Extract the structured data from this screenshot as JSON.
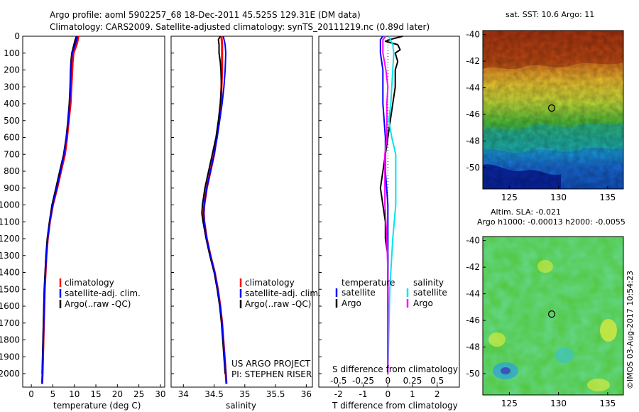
{
  "header": {
    "title_line1": "Argo profile: aoml 5902257_68 18-Dec-2011 45.525S 129.31E (DM data)",
    "title_line2": "Climatology: CARS2009. Satellite-adjusted climatology: synTS_20111219.nc (0.89d later)"
  },
  "colors": {
    "climatology": "#ff0000",
    "satellite": "#0000ff",
    "argo": "#000000",
    "salinity_satellite": "#00e5ee",
    "salinity_argo": "#ff00ff"
  },
  "chart_data": [
    {
      "type": "line",
      "id": "temperature",
      "xlabel": "temperature (deg C)",
      "ylabel": "",
      "xlim": [
        -2,
        31
      ],
      "ylim": [
        2080,
        0
      ],
      "xticks": [
        0,
        5,
        10,
        15,
        20,
        25,
        30
      ],
      "yticks": [
        0,
        100,
        200,
        300,
        400,
        500,
        600,
        700,
        800,
        900,
        1000,
        1100,
        1200,
        1300,
        1400,
        1500,
        1600,
        1700,
        1800,
        1900,
        2000
      ],
      "legend": [
        "climatology",
        "satellite-adj. clim.",
        "Argo(..raw -QC)"
      ],
      "series": [
        {
          "name": "climatology",
          "depth": [
            0,
            20,
            50,
            100,
            150,
            200,
            300,
            400,
            500,
            600,
            700,
            800,
            900,
            1000,
            1100,
            1200,
            1300,
            1400,
            1500,
            1600,
            1700,
            1800,
            1900,
            2000,
            2060
          ],
          "values": [
            10.9,
            10.8,
            10.5,
            9.8,
            9.6,
            9.5,
            9.3,
            9.1,
            8.7,
            8.3,
            7.8,
            6.9,
            6.0,
            5.0,
            4.3,
            3.8,
            3.5,
            3.3,
            3.1,
            3.0,
            2.9,
            2.8,
            2.7,
            2.6,
            2.5
          ]
        },
        {
          "name": "satellite-adj. clim.",
          "depth": [
            0,
            20,
            50,
            100,
            150,
            200,
            300,
            400,
            500,
            600,
            700,
            800,
            900,
            1000,
            1100,
            1200,
            1300,
            1400,
            1500,
            1600,
            1700,
            1800,
            1900,
            2000,
            2060
          ],
          "values": [
            10.7,
            10.5,
            10.2,
            9.5,
            9.3,
            9.2,
            9.1,
            8.9,
            8.6,
            8.2,
            7.6,
            6.8,
            5.9,
            5.0,
            4.3,
            3.8,
            3.5,
            3.3,
            3.1,
            3.0,
            2.9,
            2.8,
            2.7,
            2.6,
            2.5
          ]
        },
        {
          "name": "Argo(..raw -QC)",
          "depth": [
            0,
            20,
            50,
            100,
            150,
            200,
            300,
            400,
            500,
            600,
            700,
            800,
            900,
            1000,
            1100,
            1200,
            1300,
            1400,
            1500,
            1600,
            1700,
            1800,
            1900,
            2000
          ],
          "values": [
            10.5,
            10.2,
            9.9,
            9.4,
            9.2,
            9.1,
            9.0,
            8.8,
            8.5,
            8.1,
            7.5,
            6.6,
            5.7,
            4.8,
            4.2,
            3.7,
            3.4,
            3.2,
            3.0,
            2.9,
            2.8,
            2.7,
            2.6,
            2.5
          ]
        }
      ]
    },
    {
      "type": "line",
      "id": "salinity",
      "xlabel": "salinity",
      "xlim": [
        33.8,
        36.1
      ],
      "ylim": [
        2080,
        0
      ],
      "xticks": [
        34,
        34.5,
        35,
        35.5,
        36
      ],
      "legend": [
        "climatology",
        "satellite-adj. clim.",
        "Argo(..raw -QC)"
      ],
      "annotation_line1": "US ARGO PROJECT",
      "annotation_line2": "PI: STEPHEN RISER",
      "series": [
        {
          "name": "climatology",
          "depth": [
            0,
            50,
            100,
            200,
            300,
            400,
            500,
            600,
            700,
            800,
            900,
            1000,
            1050,
            1100,
            1200,
            1300,
            1400,
            1500,
            1600,
            1700,
            1800,
            1900,
            2000,
            2060
          ],
          "values": [
            34.62,
            34.63,
            34.63,
            34.63,
            34.62,
            34.61,
            34.58,
            34.54,
            34.5,
            34.44,
            34.38,
            34.34,
            34.33,
            34.34,
            34.38,
            34.44,
            34.51,
            34.56,
            34.6,
            34.63,
            34.65,
            34.67,
            34.69,
            34.7
          ]
        },
        {
          "name": "satellite-adj. clim.",
          "depth": [
            0,
            50,
            100,
            200,
            300,
            400,
            500,
            600,
            700,
            800,
            900,
            1000,
            1050,
            1100,
            1200,
            1300,
            1400,
            1500,
            1600,
            1700,
            1800,
            1900,
            2000,
            2060
          ],
          "values": [
            34.65,
            34.68,
            34.69,
            34.68,
            34.66,
            34.63,
            34.59,
            34.55,
            34.5,
            34.44,
            34.38,
            34.34,
            34.33,
            34.34,
            34.38,
            34.44,
            34.51,
            34.56,
            34.6,
            34.63,
            34.65,
            34.67,
            34.69,
            34.7
          ]
        },
        {
          "name": "Argo(..raw -QC)",
          "depth": [
            0,
            20,
            50,
            100,
            150,
            200,
            300,
            400,
            500,
            600,
            700,
            800,
            900,
            1000,
            1050,
            1100,
            1200,
            1300,
            1400,
            1500,
            1600,
            1700,
            1800,
            1900,
            2000
          ],
          "values": [
            34.6,
            34.57,
            34.58,
            34.58,
            34.6,
            34.61,
            34.62,
            34.6,
            34.57,
            34.53,
            34.47,
            34.41,
            34.35,
            34.31,
            34.3,
            34.32,
            34.37,
            34.43,
            34.5,
            34.55,
            34.59,
            34.62,
            34.64,
            34.66,
            34.68
          ]
        }
      ]
    },
    {
      "type": "line",
      "id": "differences",
      "xlabel": "T difference from climatology",
      "xlabel2": "S difference from climatology",
      "xlim": [
        -2.8,
        2.9
      ],
      "xlim2": [
        -0.7,
        0.725
      ],
      "ylim": [
        2080,
        0
      ],
      "xticks": [
        -2,
        -1,
        0,
        1,
        2
      ],
      "xticks2": [
        -0.5,
        -0.25,
        0,
        0.25,
        0.5
      ],
      "legend_temperature_title": "temperature",
      "legend_salinity_title": "salinity",
      "legend_temperature": [
        "satellite",
        "Argo"
      ],
      "legend_salinity": [
        "satellite",
        "Argo"
      ],
      "series": [
        {
          "name": "temperature satellite",
          "depth": [
            0,
            20,
            50,
            100,
            200,
            400,
            600,
            800,
            1000,
            1200,
            1500,
            2000
          ],
          "values": [
            -0.2,
            -0.3,
            -0.3,
            -0.3,
            -0.2,
            -0.2,
            -0.1,
            -0.1,
            0,
            0,
            0,
            0
          ]
        },
        {
          "name": "temperature Argo",
          "depth": [
            0,
            15,
            30,
            50,
            80,
            100,
            150,
            200,
            300,
            400,
            500,
            600,
            700,
            800,
            900,
            1000,
            1100,
            1200,
            1300,
            1400,
            1600,
            2000
          ],
          "values": [
            0.6,
            0.2,
            -0.1,
            0.4,
            0.5,
            0.3,
            0.4,
            0.3,
            0.3,
            0.2,
            0.1,
            0.0,
            -0.1,
            -0.2,
            -0.3,
            -0.2,
            -0.1,
            -0.1,
            0,
            0,
            0,
            0
          ]
        },
        {
          "name": "salinity satellite",
          "depth": [
            0,
            50,
            100,
            200,
            300,
            400,
            500,
            600,
            700,
            800,
            1000,
            1200,
            1500,
            2000
          ],
          "values": [
            0.01,
            0.05,
            0.06,
            0.05,
            0.04,
            0.03,
            0.01,
            0.04,
            0.08,
            0.08,
            0.08,
            0.05,
            0.02,
            0
          ]
        },
        {
          "name": "salinity Argo",
          "depth": [
            0,
            20,
            50,
            100,
            200,
            300,
            400,
            500,
            600,
            700,
            800,
            900,
            1000,
            1100,
            1200,
            1400,
            1600,
            2000
          ],
          "values": [
            -0.02,
            -0.05,
            -0.05,
            -0.05,
            -0.02,
            0.0,
            -0.01,
            -0.01,
            -0.01,
            -0.03,
            -0.03,
            -0.03,
            -0.03,
            -0.02,
            -0.01,
            0,
            0,
            0
          ]
        }
      ]
    },
    {
      "type": "heatmap",
      "id": "sst_map",
      "title": "sat. SST: 10.6  Argo: 11",
      "xlim": [
        122.3,
        136.6
      ],
      "ylim": [
        -51.6,
        -39.7
      ],
      "xticks": [
        125,
        130,
        135
      ],
      "yticks": [
        -40,
        -42,
        -44,
        -46,
        -48,
        -50
      ],
      "marker": {
        "lon": 129.31,
        "lat": -45.525
      }
    },
    {
      "type": "heatmap",
      "id": "sla_map",
      "title_line1": "Altim. SLA: -0.021",
      "title_line2": "Argo h1000: -0.00013  h2000: -0.0055",
      "xlim": [
        122.3,
        136.6
      ],
      "ylim": [
        -51.6,
        -39.7
      ],
      "xticks": [
        125,
        130,
        135
      ],
      "yticks": [
        -40,
        -42,
        -44,
        -46,
        -48,
        -50
      ],
      "marker": {
        "lon": 129.31,
        "lat": -45.525
      }
    }
  ],
  "footer": {
    "credit": "©IMOS 03-Aug-2017 10:54:23"
  }
}
